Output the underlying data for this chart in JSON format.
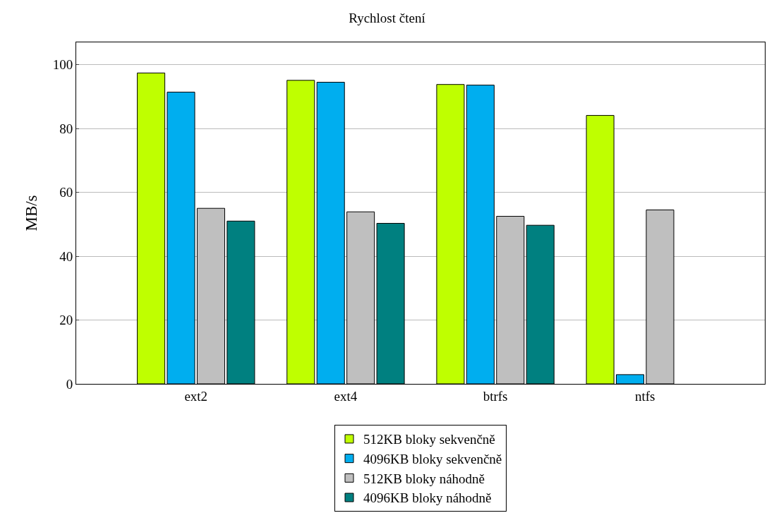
{
  "chart_data": {
    "type": "bar",
    "title": "Rychlost čtení",
    "ylabel": "MB/s",
    "categories": [
      "ext2",
      "ext4",
      "btrfs",
      "ntfs"
    ],
    "series": [
      {
        "name": "512KB bloky sekvenčně",
        "color": "#bfff00",
        "values": [
          97.4,
          95.1,
          93.8,
          84.1
        ]
      },
      {
        "name": "4096KB bloky sekvenčně",
        "color": "#00aeef",
        "values": [
          91.4,
          94.5,
          93.6,
          2.9
        ]
      },
      {
        "name": "512KB bloky náhodně",
        "color": "#bfbfbf",
        "values": [
          55.0,
          53.9,
          52.5,
          54.5
        ]
      },
      {
        "name": "4096KB bloky náhodně",
        "color": "#008080",
        "values": [
          51.0,
          50.3,
          49.7,
          null
        ]
      }
    ],
    "ylim": [
      0,
      107
    ],
    "yticks": [
      0,
      20,
      40,
      60,
      80,
      100
    ],
    "grid": "y",
    "legend": "bottom"
  }
}
